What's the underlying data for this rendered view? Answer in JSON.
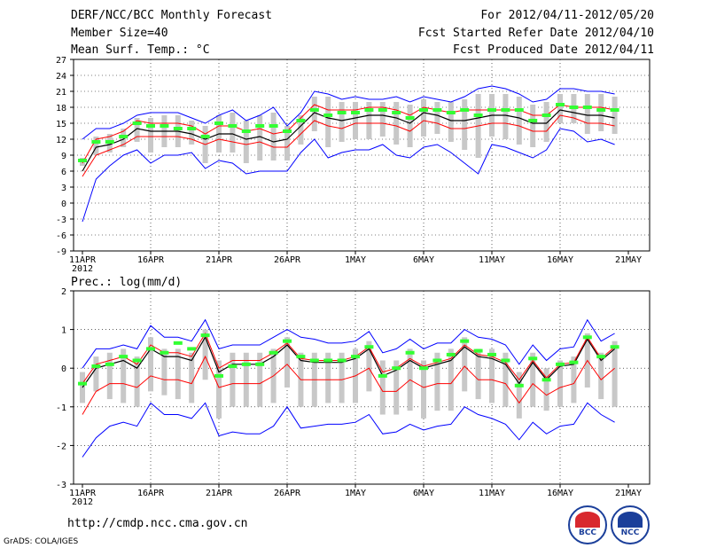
{
  "header": {
    "title": "DERF/NCC/BCC Monthly Forecast",
    "member_size": "Member Size=40",
    "variable": "Mean Surf. Temp.: °C",
    "period": "For 2012/04/11-2012/05/20",
    "start_date": "Fcst Started Refer Date 2012/04/10",
    "produced_date": "Fcst Produced Date 2012/04/11"
  },
  "footer": {
    "url": "http://cmdp.ncc.cma.gov.cn",
    "credit": "GrADS: COLA/IGES",
    "logo_bcc": "BCC",
    "logo_ncc": "NCC"
  },
  "colors": {
    "mean": "#000000",
    "spread_inner": "#ff0000",
    "spread_outer": "#0000ff",
    "observed": "#33ff33",
    "range_bar": "#c8c8c8"
  },
  "chart_data": [
    {
      "type": "line",
      "title": "",
      "ylabel": "Mean Surf. Temp.: °C",
      "x_tick_labels": [
        "11APR\n2012",
        "16APR",
        "21APR",
        "26APR",
        "1MAY",
        "6MAY",
        "11MAY",
        "16MAY",
        "21MAY"
      ],
      "ylim": [
        -9,
        27
      ],
      "yticks": [
        -9,
        -6,
        -3,
        0,
        3,
        6,
        9,
        12,
        15,
        18,
        21,
        24,
        27
      ],
      "days": 40,
      "series": [
        {
          "name": "ensemble-mean",
          "values": [
            6.0,
            10.5,
            11.0,
            12.0,
            14.0,
            13.5,
            13.5,
            13.5,
            13.0,
            12.0,
            13.0,
            13.0,
            12.0,
            12.5,
            11.5,
            12.0,
            14.5,
            17.0,
            16.0,
            15.5,
            16.0,
            16.5,
            16.5,
            16.0,
            15.0,
            17.0,
            16.5,
            15.5,
            15.5,
            16.0,
            16.5,
            16.5,
            16.0,
            15.0,
            15.0,
            17.5,
            17.0,
            16.5,
            16.5,
            16.0
          ]
        },
        {
          "name": "upper-inner",
          "values": [
            7.5,
            12.0,
            12.5,
            13.5,
            15.5,
            15.0,
            15.0,
            15.0,
            14.5,
            13.0,
            14.5,
            14.5,
            13.5,
            14.0,
            13.0,
            13.5,
            16.0,
            18.5,
            17.5,
            17.5,
            17.5,
            18.0,
            18.0,
            17.5,
            16.5,
            18.0,
            17.5,
            17.0,
            17.5,
            17.5,
            17.5,
            17.5,
            17.5,
            16.5,
            16.5,
            18.5,
            18.0,
            18.0,
            18.0,
            17.5
          ]
        },
        {
          "name": "lower-inner",
          "values": [
            5.0,
            9.0,
            10.0,
            11.0,
            12.5,
            12.5,
            12.5,
            12.5,
            12.0,
            11.0,
            12.0,
            11.5,
            11.0,
            11.5,
            10.5,
            10.5,
            13.0,
            15.5,
            14.5,
            14.0,
            15.0,
            15.0,
            15.0,
            14.5,
            13.5,
            15.5,
            15.0,
            14.0,
            14.0,
            14.5,
            15.0,
            15.0,
            14.5,
            13.5,
            13.5,
            16.5,
            16.0,
            15.0,
            15.0,
            14.5
          ]
        },
        {
          "name": "upper-outer",
          "values": [
            12.0,
            14.0,
            14.0,
            15.0,
            16.5,
            17.0,
            17.0,
            17.0,
            16.0,
            15.0,
            16.5,
            17.5,
            15.5,
            16.5,
            18.0,
            14.5,
            17.0,
            21.0,
            20.5,
            19.5,
            20.0,
            19.5,
            19.5,
            20.0,
            19.0,
            20.0,
            19.5,
            19.0,
            20.0,
            21.5,
            22.0,
            21.5,
            20.5,
            19.0,
            19.5,
            21.5,
            21.5,
            21.0,
            21.0,
            20.5
          ]
        },
        {
          "name": "lower-outer",
          "values": [
            -3.5,
            4.5,
            7.0,
            9.0,
            10.0,
            7.5,
            9.0,
            9.0,
            9.5,
            6.5,
            8.0,
            7.5,
            5.5,
            6.0,
            6.0,
            6.0,
            9.5,
            12.0,
            8.5,
            9.5,
            10.0,
            10.0,
            11.0,
            9.0,
            8.5,
            10.5,
            11.0,
            9.5,
            7.5,
            5.5,
            11.0,
            10.5,
            9.5,
            8.5,
            10.0,
            14.0,
            13.5,
            11.5,
            12.0,
            11.0
          ]
        },
        {
          "name": "observed",
          "values": [
            8.0,
            11.5,
            11.5,
            12.5,
            15.0,
            14.5,
            14.5,
            14.0,
            14.0,
            12.5,
            15.0,
            14.5,
            13.5,
            14.5,
            14.5,
            13.5,
            15.5,
            17.5,
            16.5,
            17.0,
            17.0,
            17.5,
            17.5,
            17.0,
            16.0,
            17.5,
            17.5,
            17.0,
            17.5,
            16.5,
            17.5,
            17.5,
            17.5,
            15.5,
            16.5,
            18.5,
            18.0,
            18.0,
            17.5,
            17.5
          ]
        }
      ],
      "range_bars": {
        "max": [
          8.5,
          12.5,
          13.0,
          14.0,
          16.0,
          16.0,
          16.5,
          16.5,
          15.5,
          14.5,
          16.5,
          17.0,
          15.5,
          16.5,
          17.0,
          14.5,
          16.5,
          20.0,
          20.0,
          19.0,
          19.0,
          19.0,
          19.0,
          19.0,
          18.5,
          19.5,
          19.0,
          19.0,
          19.5,
          20.5,
          20.5,
          20.5,
          20.0,
          18.5,
          19.0,
          20.5,
          20.5,
          20.5,
          20.5,
          20.0
        ],
        "min": [
          7.0,
          9.0,
          9.5,
          10.5,
          11.5,
          9.5,
          10.5,
          10.5,
          11.0,
          7.5,
          9.5,
          9.5,
          7.5,
          8.0,
          8.0,
          8.0,
          11.0,
          13.5,
          10.5,
          11.5,
          12.0,
          12.0,
          12.5,
          11.0,
          10.5,
          12.5,
          13.0,
          11.5,
          10.0,
          8.5,
          12.5,
          12.0,
          11.0,
          10.5,
          11.5,
          15.0,
          15.0,
          13.0,
          13.5,
          13.0
        ]
      }
    },
    {
      "type": "line",
      "title": "",
      "ylabel": "Prec.: log(mm/d)",
      "x_tick_labels": [
        "11APR\n2012",
        "16APR",
        "21APR",
        "26APR",
        "1MAY",
        "6MAY",
        "11MAY",
        "16MAY",
        "21MAY"
      ],
      "ylim": [
        -3,
        2
      ],
      "yticks": [
        -3,
        -2,
        -1,
        0,
        1,
        2
      ],
      "days": 40,
      "series": [
        {
          "name": "ensemble-mean",
          "values": [
            -0.5,
            0.0,
            0.1,
            0.2,
            0.0,
            0.5,
            0.3,
            0.3,
            0.2,
            0.8,
            -0.1,
            0.1,
            0.1,
            0.1,
            0.3,
            0.6,
            0.2,
            0.15,
            0.15,
            0.15,
            0.25,
            0.5,
            -0.2,
            -0.05,
            0.2,
            0.0,
            0.1,
            0.2,
            0.55,
            0.3,
            0.25,
            0.1,
            -0.4,
            0.15,
            -0.3,
            0.05,
            0.1,
            0.75,
            0.2,
            0.5
          ]
        },
        {
          "name": "upper-inner",
          "values": [
            -0.4,
            0.1,
            0.2,
            0.3,
            0.1,
            0.6,
            0.4,
            0.4,
            0.3,
            0.9,
            0.0,
            0.2,
            0.2,
            0.2,
            0.4,
            0.65,
            0.25,
            0.2,
            0.2,
            0.2,
            0.3,
            0.55,
            -0.1,
            0.0,
            0.25,
            0.05,
            0.15,
            0.25,
            0.6,
            0.35,
            0.3,
            0.15,
            -0.3,
            0.2,
            -0.25,
            0.1,
            0.15,
            0.8,
            0.25,
            0.55
          ]
        },
        {
          "name": "lower-inner",
          "values": [
            -1.2,
            -0.6,
            -0.4,
            -0.4,
            -0.5,
            -0.2,
            -0.3,
            -0.3,
            -0.4,
            0.3,
            -0.5,
            -0.4,
            -0.4,
            -0.4,
            -0.2,
            0.1,
            -0.3,
            -0.3,
            -0.3,
            -0.3,
            -0.2,
            0.0,
            -0.6,
            -0.6,
            -0.3,
            -0.5,
            -0.4,
            -0.4,
            0.05,
            -0.3,
            -0.3,
            -0.4,
            -0.9,
            -0.4,
            -0.7,
            -0.5,
            -0.4,
            0.2,
            -0.3,
            0.0
          ]
        },
        {
          "name": "upper-outer",
          "values": [
            0.0,
            0.5,
            0.5,
            0.6,
            0.5,
            1.1,
            0.8,
            0.8,
            0.7,
            1.25,
            0.5,
            0.6,
            0.6,
            0.6,
            0.8,
            1.0,
            0.8,
            0.75,
            0.65,
            0.65,
            0.7,
            0.95,
            0.4,
            0.5,
            0.75,
            0.5,
            0.65,
            0.65,
            1.0,
            0.8,
            0.75,
            0.6,
            0.1,
            0.6,
            0.2,
            0.5,
            0.55,
            1.25,
            0.7,
            0.9
          ]
        },
        {
          "name": "lower-outer",
          "values": [
            -2.3,
            -1.8,
            -1.5,
            -1.4,
            -1.5,
            -0.9,
            -1.2,
            -1.2,
            -1.3,
            -0.9,
            -1.75,
            -1.65,
            -1.7,
            -1.7,
            -1.5,
            -1.0,
            -1.55,
            -1.5,
            -1.45,
            -1.45,
            -1.4,
            -1.2,
            -1.7,
            -1.65,
            -1.45,
            -1.6,
            -1.5,
            -1.45,
            -1.0,
            -1.2,
            -1.3,
            -1.45,
            -1.85,
            -1.4,
            -1.7,
            -1.5,
            -1.45,
            -0.9,
            -1.2,
            -1.4
          ]
        },
        {
          "name": "observed",
          "values": [
            -0.4,
            0.05,
            0.1,
            0.3,
            0.2,
            0.5,
            0.4,
            0.65,
            0.5,
            0.85,
            -0.2,
            0.05,
            0.1,
            0.1,
            0.4,
            0.7,
            0.3,
            0.2,
            0.2,
            0.2,
            0.3,
            0.55,
            -0.2,
            0.0,
            0.4,
            0.0,
            0.2,
            0.35,
            0.7,
            0.45,
            0.35,
            0.2,
            -0.45,
            0.25,
            -0.3,
            0.1,
            0.15,
            0.8,
            0.3,
            0.55
          ]
        }
      ],
      "range_bars": {
        "max": [
          -0.1,
          0.3,
          0.4,
          0.5,
          0.3,
          0.8,
          0.5,
          0.5,
          0.4,
          1.0,
          0.2,
          0.4,
          0.4,
          0.4,
          0.5,
          0.8,
          0.4,
          0.4,
          0.4,
          0.4,
          0.5,
          0.7,
          0.2,
          0.2,
          0.5,
          0.2,
          0.4,
          0.5,
          0.8,
          0.5,
          0.5,
          0.4,
          -0.1,
          0.4,
          0.0,
          0.2,
          0.3,
          0.9,
          0.4,
          0.7
        ],
        "min": [
          -0.9,
          -0.6,
          -0.8,
          -0.9,
          -1.0,
          -0.6,
          -0.7,
          -0.8,
          -0.9,
          -0.3,
          -1.3,
          -1.0,
          -1.0,
          -1.0,
          -0.9,
          -0.5,
          -1.0,
          -1.0,
          -0.9,
          -0.9,
          -0.9,
          -0.6,
          -1.2,
          -1.2,
          -1.1,
          -1.3,
          -1.1,
          -1.1,
          -0.6,
          -0.8,
          -0.9,
          -1.0,
          -1.3,
          -1.0,
          -1.1,
          -1.0,
          -0.9,
          -0.5,
          -0.8,
          -1.0
        ]
      }
    }
  ]
}
